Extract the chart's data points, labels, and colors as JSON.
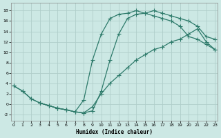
{
  "xlabel": "Humidex (Indice chaleur)",
  "bg_color": "#cce8e4",
  "line_color": "#2d7a6a",
  "grid_color": "#b8d8d4",
  "xlim": [
    -0.3,
    23.3
  ],
  "ylim": [
    -3.2,
    19.5
  ],
  "xticks": [
    0,
    1,
    2,
    3,
    4,
    5,
    6,
    7,
    8,
    9,
    10,
    11,
    12,
    13,
    14,
    15,
    16,
    17,
    18,
    19,
    20,
    21,
    22,
    23
  ],
  "yticks": [
    -2,
    0,
    2,
    4,
    6,
    8,
    10,
    12,
    14,
    16,
    18
  ],
  "curve1_x": [
    0,
    1,
    2,
    3,
    4,
    5,
    6,
    7,
    8,
    9,
    10,
    11,
    12,
    13,
    14,
    15,
    16,
    17,
    18,
    19,
    20,
    21,
    22,
    23
  ],
  "curve1_y": [
    3.5,
    2.5,
    1.0,
    0.2,
    -0.3,
    -0.8,
    -1.1,
    -1.5,
    -1.7,
    -1.3,
    2.5,
    8.5,
    13.5,
    16.5,
    17.3,
    17.5,
    18.0,
    17.5,
    17.0,
    16.5,
    16.0,
    15.0,
    13.0,
    12.5
  ],
  "curve2_x": [
    0,
    1,
    2,
    3,
    4,
    5,
    6,
    7,
    8,
    9,
    10,
    11,
    12,
    13,
    14,
    15,
    16,
    17,
    18,
    19,
    20,
    21,
    22,
    23
  ],
  "curve2_y": [
    3.5,
    2.5,
    1.0,
    0.2,
    -0.3,
    -0.8,
    -1.1,
    -1.5,
    0.8,
    8.5,
    13.5,
    16.5,
    17.3,
    17.5,
    18.0,
    17.5,
    17.0,
    16.5,
    16.0,
    15.0,
    13.0,
    12.5,
    11.5,
    10.5
  ],
  "curve3_x": [
    3,
    4,
    5,
    6,
    7,
    8,
    9,
    10,
    11,
    12,
    13,
    14,
    15,
    16,
    17,
    18,
    19,
    20,
    21,
    22,
    23
  ],
  "curve3_y": [
    0.2,
    -0.3,
    -0.8,
    -1.1,
    -1.5,
    -1.7,
    -0.5,
    2.0,
    4.0,
    5.5,
    7.0,
    8.5,
    9.5,
    10.5,
    11.0,
    12.0,
    12.5,
    13.5,
    14.5,
    12.0,
    10.5
  ]
}
